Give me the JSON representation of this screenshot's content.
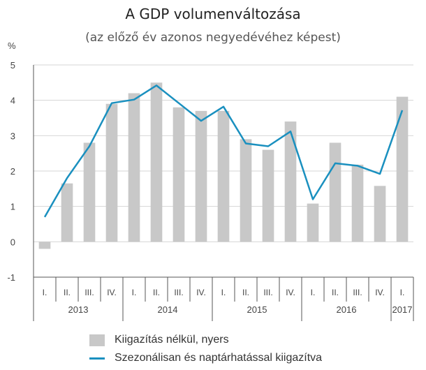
{
  "chart_data": {
    "type": "bar+line",
    "title": "A GDP volumenváltozása",
    "subtitle": "(az előző év azonos negyedévéhez képest)",
    "ylabel": "%",
    "ylim": [
      -1,
      5
    ],
    "yticks": [
      "5",
      "4",
      "3",
      "2",
      "1",
      "0",
      "-1"
    ],
    "grid": true,
    "categories": [
      "I.",
      "II.",
      "III.",
      "IV.",
      "I.",
      "II.",
      "III.",
      "IV.",
      "I.",
      "II.",
      "III.",
      "IV.",
      "I.",
      "II.",
      "III.",
      "IV.",
      "I."
    ],
    "years": [
      {
        "label": "2013",
        "start": 0,
        "count": 4
      },
      {
        "label": "2014",
        "start": 4,
        "count": 4
      },
      {
        "label": "2015",
        "start": 8,
        "count": 4
      },
      {
        "label": "2016",
        "start": 12,
        "count": 4
      },
      {
        "label": "2017",
        "start": 16,
        "count": 1
      }
    ],
    "series": [
      {
        "name": "Kiigazítás nélkül, nyers",
        "type": "bar",
        "color": "#c8c8c8",
        "values": [
          -0.2,
          1.65,
          2.8,
          3.9,
          4.2,
          4.5,
          3.8,
          3.7,
          3.7,
          2.9,
          2.6,
          3.4,
          1.08,
          2.8,
          2.18,
          1.58,
          4.1
        ]
      },
      {
        "name": "Szezonálisan és naptárhatással kiigazítva",
        "type": "line",
        "color": "#1a90bf",
        "values": [
          0.7,
          1.8,
          2.7,
          3.92,
          4.02,
          4.42,
          3.92,
          3.42,
          3.82,
          2.78,
          2.7,
          3.12,
          1.2,
          2.22,
          2.15,
          1.92,
          3.72
        ]
      }
    ],
    "legend_position": "bottom-left"
  }
}
